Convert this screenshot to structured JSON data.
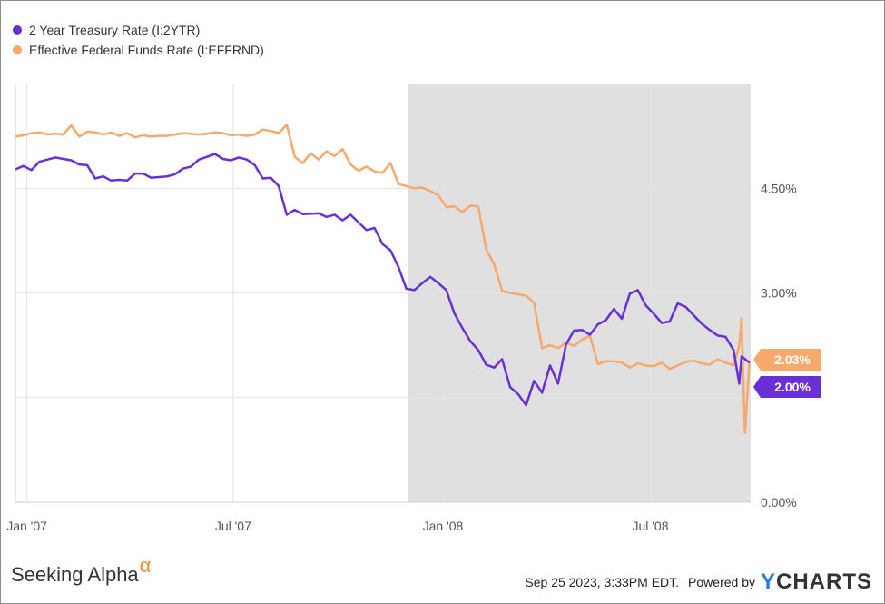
{
  "chart_data": {
    "type": "line",
    "series": [
      {
        "name": "2 Year Treasury Rate (I:2YTR)",
        "color": "#6a2fd6",
        "last_label": "2.00%",
        "points": [
          [
            "2006-12-22",
            4.77
          ],
          [
            "2006-12-29",
            4.82
          ],
          [
            "2007-01-05",
            4.76
          ],
          [
            "2007-01-12",
            4.88
          ],
          [
            "2007-01-19",
            4.91
          ],
          [
            "2007-01-26",
            4.94
          ],
          [
            "2007-02-02",
            4.92
          ],
          [
            "2007-02-09",
            4.9
          ],
          [
            "2007-02-16",
            4.84
          ],
          [
            "2007-02-23",
            4.83
          ],
          [
            "2007-03-02",
            4.64
          ],
          [
            "2007-03-09",
            4.67
          ],
          [
            "2007-03-16",
            4.61
          ],
          [
            "2007-03-23",
            4.62
          ],
          [
            "2007-03-30",
            4.61
          ],
          [
            "2007-04-06",
            4.71
          ],
          [
            "2007-04-13",
            4.71
          ],
          [
            "2007-04-20",
            4.65
          ],
          [
            "2007-04-27",
            4.66
          ],
          [
            "2007-05-04",
            4.67
          ],
          [
            "2007-05-11",
            4.7
          ],
          [
            "2007-05-18",
            4.78
          ],
          [
            "2007-05-25",
            4.81
          ],
          [
            "2007-06-01",
            4.91
          ],
          [
            "2007-06-08",
            4.95
          ],
          [
            "2007-06-15",
            4.99
          ],
          [
            "2007-06-22",
            4.92
          ],
          [
            "2007-06-29",
            4.9
          ],
          [
            "2007-07-06",
            4.94
          ],
          [
            "2007-07-13",
            4.91
          ],
          [
            "2007-07-20",
            4.83
          ],
          [
            "2007-07-27",
            4.64
          ],
          [
            "2007-08-03",
            4.65
          ],
          [
            "2007-08-10",
            4.53
          ],
          [
            "2007-08-17",
            4.12
          ],
          [
            "2007-08-24",
            4.19
          ],
          [
            "2007-08-31",
            4.13
          ],
          [
            "2007-09-14",
            4.14
          ],
          [
            "2007-09-21",
            4.09
          ],
          [
            "2007-09-28",
            4.12
          ],
          [
            "2007-10-05",
            4.04
          ],
          [
            "2007-10-12",
            4.12
          ],
          [
            "2007-10-19",
            4.01
          ],
          [
            "2007-10-26",
            3.9
          ],
          [
            "2007-11-02",
            3.93
          ],
          [
            "2007-11-09",
            3.7
          ],
          [
            "2007-11-16",
            3.61
          ],
          [
            "2007-11-23",
            3.37
          ],
          [
            "2007-11-30",
            3.06
          ],
          [
            "2007-12-07",
            3.04
          ],
          [
            "2007-12-14",
            3.14
          ],
          [
            "2007-12-21",
            3.23
          ],
          [
            "2007-12-28",
            3.14
          ],
          [
            "2008-01-04",
            3.04
          ],
          [
            "2008-01-11",
            2.71
          ],
          [
            "2008-01-18",
            2.5
          ],
          [
            "2008-01-25",
            2.31
          ],
          [
            "2008-02-01",
            2.18
          ],
          [
            "2008-02-08",
            1.97
          ],
          [
            "2008-02-15",
            1.93
          ],
          [
            "2008-02-22",
            2.05
          ],
          [
            "2008-02-29",
            1.65
          ],
          [
            "2008-03-07",
            1.55
          ],
          [
            "2008-03-14",
            1.39
          ],
          [
            "2008-03-21",
            1.74
          ],
          [
            "2008-03-28",
            1.57
          ],
          [
            "2008-04-04",
            1.96
          ],
          [
            "2008-04-11",
            1.7
          ],
          [
            "2008-04-18",
            2.26
          ],
          [
            "2008-04-25",
            2.46
          ],
          [
            "2008-05-02",
            2.47
          ],
          [
            "2008-05-09",
            2.4
          ],
          [
            "2008-05-16",
            2.55
          ],
          [
            "2008-05-23",
            2.61
          ],
          [
            "2008-05-30",
            2.77
          ],
          [
            "2008-06-06",
            2.63
          ],
          [
            "2008-06-13",
            2.99
          ],
          [
            "2008-06-20",
            3.04
          ],
          [
            "2008-06-27",
            2.82
          ],
          [
            "2008-07-04",
            2.7
          ],
          [
            "2008-07-11",
            2.57
          ],
          [
            "2008-07-18",
            2.59
          ],
          [
            "2008-07-25",
            2.85
          ],
          [
            "2008-08-01",
            2.8
          ],
          [
            "2008-08-08",
            2.68
          ],
          [
            "2008-08-15",
            2.56
          ],
          [
            "2008-08-22",
            2.47
          ],
          [
            "2008-08-29",
            2.39
          ],
          [
            "2008-09-05",
            2.37
          ],
          [
            "2008-09-12",
            2.18
          ],
          [
            "2008-09-17",
            1.7
          ],
          [
            "2008-09-19",
            2.09
          ],
          [
            "2008-09-26",
            2.0
          ]
        ]
      },
      {
        "name": "Effective Federal Funds Rate (I:EFFRND)",
        "color": "#f8a86a",
        "last_label": "2.03%",
        "points": [
          [
            "2006-12-22",
            5.24
          ],
          [
            "2006-12-29",
            5.26
          ],
          [
            "2007-01-05",
            5.29
          ],
          [
            "2007-01-12",
            5.3
          ],
          [
            "2007-01-19",
            5.27
          ],
          [
            "2007-01-26",
            5.28
          ],
          [
            "2007-02-02",
            5.27
          ],
          [
            "2007-02-09",
            5.4
          ],
          [
            "2007-02-16",
            5.24
          ],
          [
            "2007-02-23",
            5.31
          ],
          [
            "2007-03-02",
            5.3
          ],
          [
            "2007-03-09",
            5.27
          ],
          [
            "2007-03-16",
            5.3
          ],
          [
            "2007-03-23",
            5.25
          ],
          [
            "2007-03-30",
            5.29
          ],
          [
            "2007-04-06",
            5.23
          ],
          [
            "2007-04-13",
            5.26
          ],
          [
            "2007-04-20",
            5.24
          ],
          [
            "2007-04-27",
            5.25
          ],
          [
            "2007-05-04",
            5.25
          ],
          [
            "2007-05-11",
            5.27
          ],
          [
            "2007-05-18",
            5.29
          ],
          [
            "2007-05-25",
            5.28
          ],
          [
            "2007-06-01",
            5.27
          ],
          [
            "2007-06-08",
            5.28
          ],
          [
            "2007-06-15",
            5.3
          ],
          [
            "2007-06-22",
            5.29
          ],
          [
            "2007-06-29",
            5.26
          ],
          [
            "2007-07-06",
            5.27
          ],
          [
            "2007-07-13",
            5.25
          ],
          [
            "2007-07-20",
            5.27
          ],
          [
            "2007-07-27",
            5.34
          ],
          [
            "2007-08-03",
            5.32
          ],
          [
            "2007-08-10",
            5.29
          ],
          [
            "2007-08-17",
            5.41
          ],
          [
            "2007-08-24",
            4.95
          ],
          [
            "2007-08-31",
            4.86
          ],
          [
            "2007-09-07",
            5.0
          ],
          [
            "2007-09-14",
            4.91
          ],
          [
            "2007-09-21",
            5.03
          ],
          [
            "2007-09-28",
            4.96
          ],
          [
            "2007-10-05",
            5.06
          ],
          [
            "2007-10-12",
            4.84
          ],
          [
            "2007-10-19",
            4.75
          ],
          [
            "2007-10-26",
            4.81
          ],
          [
            "2007-11-02",
            4.74
          ],
          [
            "2007-11-09",
            4.72
          ],
          [
            "2007-11-16",
            4.86
          ],
          [
            "2007-11-23",
            4.56
          ],
          [
            "2007-11-30",
            4.53
          ],
          [
            "2007-12-07",
            4.5
          ],
          [
            "2007-12-14",
            4.51
          ],
          [
            "2007-12-21",
            4.46
          ],
          [
            "2007-12-28",
            4.4
          ],
          [
            "2008-01-04",
            4.23
          ],
          [
            "2008-01-11",
            4.24
          ],
          [
            "2008-01-18",
            4.16
          ],
          [
            "2008-01-25",
            4.25
          ],
          [
            "2008-02-01",
            4.24
          ],
          [
            "2008-02-08",
            3.62
          ],
          [
            "2008-02-15",
            3.41
          ],
          [
            "2008-02-22",
            3.03
          ],
          [
            "2008-02-29",
            3.0
          ],
          [
            "2008-03-07",
            2.98
          ],
          [
            "2008-03-14",
            2.96
          ],
          [
            "2008-03-21",
            2.86
          ],
          [
            "2008-03-28",
            2.21
          ],
          [
            "2008-04-04",
            2.25
          ],
          [
            "2008-04-11",
            2.21
          ],
          [
            "2008-04-18",
            2.29
          ],
          [
            "2008-04-25",
            2.24
          ],
          [
            "2008-05-02",
            2.33
          ],
          [
            "2008-05-09",
            2.39
          ],
          [
            "2008-05-16",
            1.98
          ],
          [
            "2008-05-23",
            2.02
          ],
          [
            "2008-05-30",
            2.02
          ],
          [
            "2008-06-06",
            2.0
          ],
          [
            "2008-06-13",
            1.93
          ],
          [
            "2008-06-20",
            1.99
          ],
          [
            "2008-06-27",
            1.96
          ],
          [
            "2008-07-04",
            1.95
          ],
          [
            "2008-07-11",
            2.0
          ],
          [
            "2008-07-18",
            1.91
          ],
          [
            "2008-07-25",
            1.96
          ],
          [
            "2008-08-01",
            2.01
          ],
          [
            "2008-08-08",
            2.03
          ],
          [
            "2008-08-15",
            1.99
          ],
          [
            "2008-08-22",
            1.97
          ],
          [
            "2008-08-29",
            2.05
          ],
          [
            "2008-09-05",
            2.0
          ],
          [
            "2008-09-12",
            1.96
          ],
          [
            "2008-09-17",
            2.25
          ],
          [
            "2008-09-19",
            2.64
          ],
          [
            "2008-09-22",
            0.99
          ],
          [
            "2008-09-26",
            2.03
          ]
        ]
      }
    ],
    "x_ticks": [
      {
        "label": "Jan '07",
        "date": "2007-01-01"
      },
      {
        "label": "Jul '07",
        "date": "2007-07-01"
      },
      {
        "label": "Jan '08",
        "date": "2008-01-01"
      },
      {
        "label": "Jul '08",
        "date": "2008-07-01"
      }
    ],
    "y_ticks": [
      {
        "label": "0.00%",
        "value": 0
      },
      {
        "label": "",
        "value": 1.5
      },
      {
        "label": "3.00%",
        "value": 3
      },
      {
        "label": "4.50%",
        "value": 4.5
      }
    ],
    "xlim": [
      "2006-12-22",
      "2008-09-27"
    ],
    "ylim": [
      0,
      6.0
    ],
    "shaded_region": {
      "start": "2007-12-01",
      "end": "2008-09-27",
      "color": "#e0e0e0"
    },
    "grid": true,
    "legend_position": "top-left"
  },
  "footer": {
    "brand": "Seeking Alpha",
    "brand_symbol": "α",
    "timestamp": "Sep 25 2023, 3:33PM EDT.",
    "powered_by": "Powered by",
    "ycharts_y": "Y",
    "ycharts_rest": "CHARTS"
  }
}
